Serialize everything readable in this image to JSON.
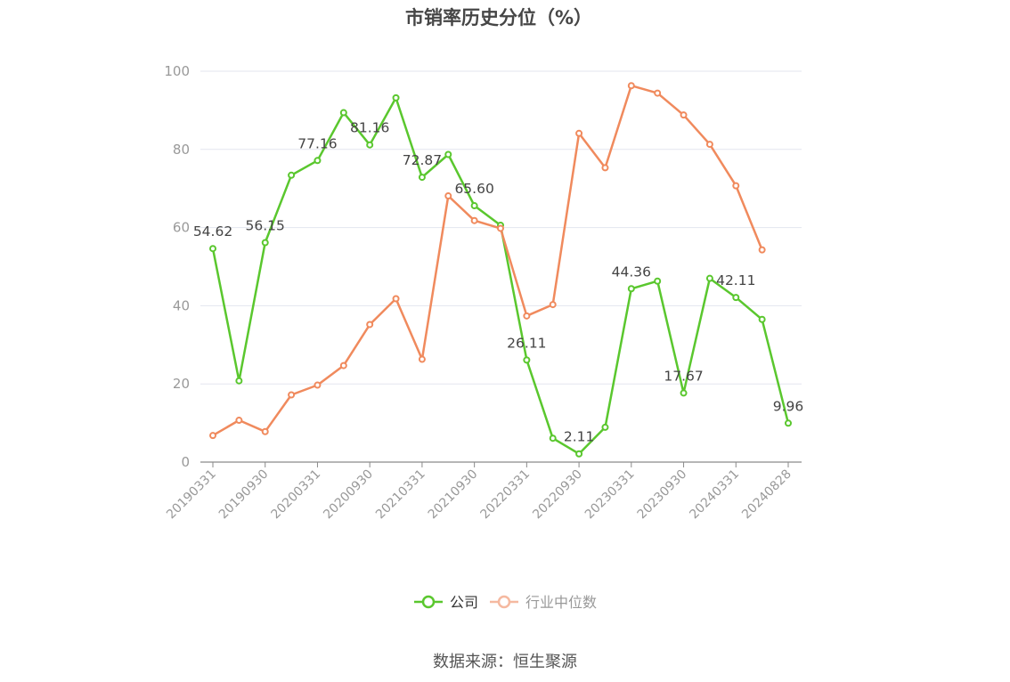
{
  "page": {
    "title": "市销率历史分位（%）",
    "source": "数据来源：恒生聚源"
  },
  "colors": {
    "company": "#5ac72e",
    "industry": "#f08a5d",
    "industry_legend": "#f5b9a0",
    "grid": "#e3e6ef",
    "axis": "#8a8a8a",
    "tick_text": "#999999",
    "label_text": "#444444"
  },
  "chart_data": {
    "type": "line",
    "title": "市销率历史分位（%）",
    "xlabel": "",
    "ylabel": "",
    "ylim": [
      0,
      100
    ],
    "yticks": [
      0,
      20,
      40,
      60,
      80,
      100
    ],
    "grid": true,
    "legend_position": "bottom-center",
    "x": [
      "20190331",
      "20190630",
      "20190930",
      "20191231",
      "20200331",
      "20200630",
      "20200930",
      "20201231",
      "20210331",
      "20210630",
      "20210930",
      "20211231",
      "20220331",
      "20220630",
      "20220930",
      "20221231",
      "20230331",
      "20230630",
      "20230930",
      "20231231",
      "20240331",
      "20240630",
      "20240828"
    ],
    "x_tick_labels": [
      "20190331",
      "20190930",
      "20200331",
      "20200930",
      "20210331",
      "20210930",
      "20220331",
      "20220930",
      "20230331",
      "20230930",
      "20240331",
      "20240828"
    ],
    "series": [
      {
        "name": "公司",
        "color_key": "company",
        "values": [
          54.62,
          20.8,
          56.15,
          73.4,
          77.16,
          89.4,
          81.16,
          93.2,
          72.87,
          78.7,
          65.6,
          60.6,
          26.11,
          6.1,
          2.11,
          8.9,
          44.36,
          46.3,
          17.67,
          47.0,
          42.11,
          36.5,
          9.96
        ],
        "point_labels": [
          "54.62",
          "",
          "56.15",
          "",
          "77.16",
          "",
          "81.16",
          "",
          "72.87",
          "",
          "65.60",
          "",
          "26.11",
          "",
          "2.11",
          "",
          "44.36",
          "",
          "17.67",
          "",
          "42.11",
          "",
          "9.96"
        ]
      },
      {
        "name": "行业中位数",
        "color_key": "industry",
        "values": [
          6.8,
          10.7,
          7.8,
          17.2,
          19.7,
          24.7,
          35.2,
          41.8,
          26.3,
          68.1,
          61.8,
          59.8,
          37.4,
          40.3,
          84.1,
          75.3,
          96.3,
          94.4,
          88.8,
          81.3,
          70.7,
          54.3,
          null
        ]
      }
    ]
  }
}
